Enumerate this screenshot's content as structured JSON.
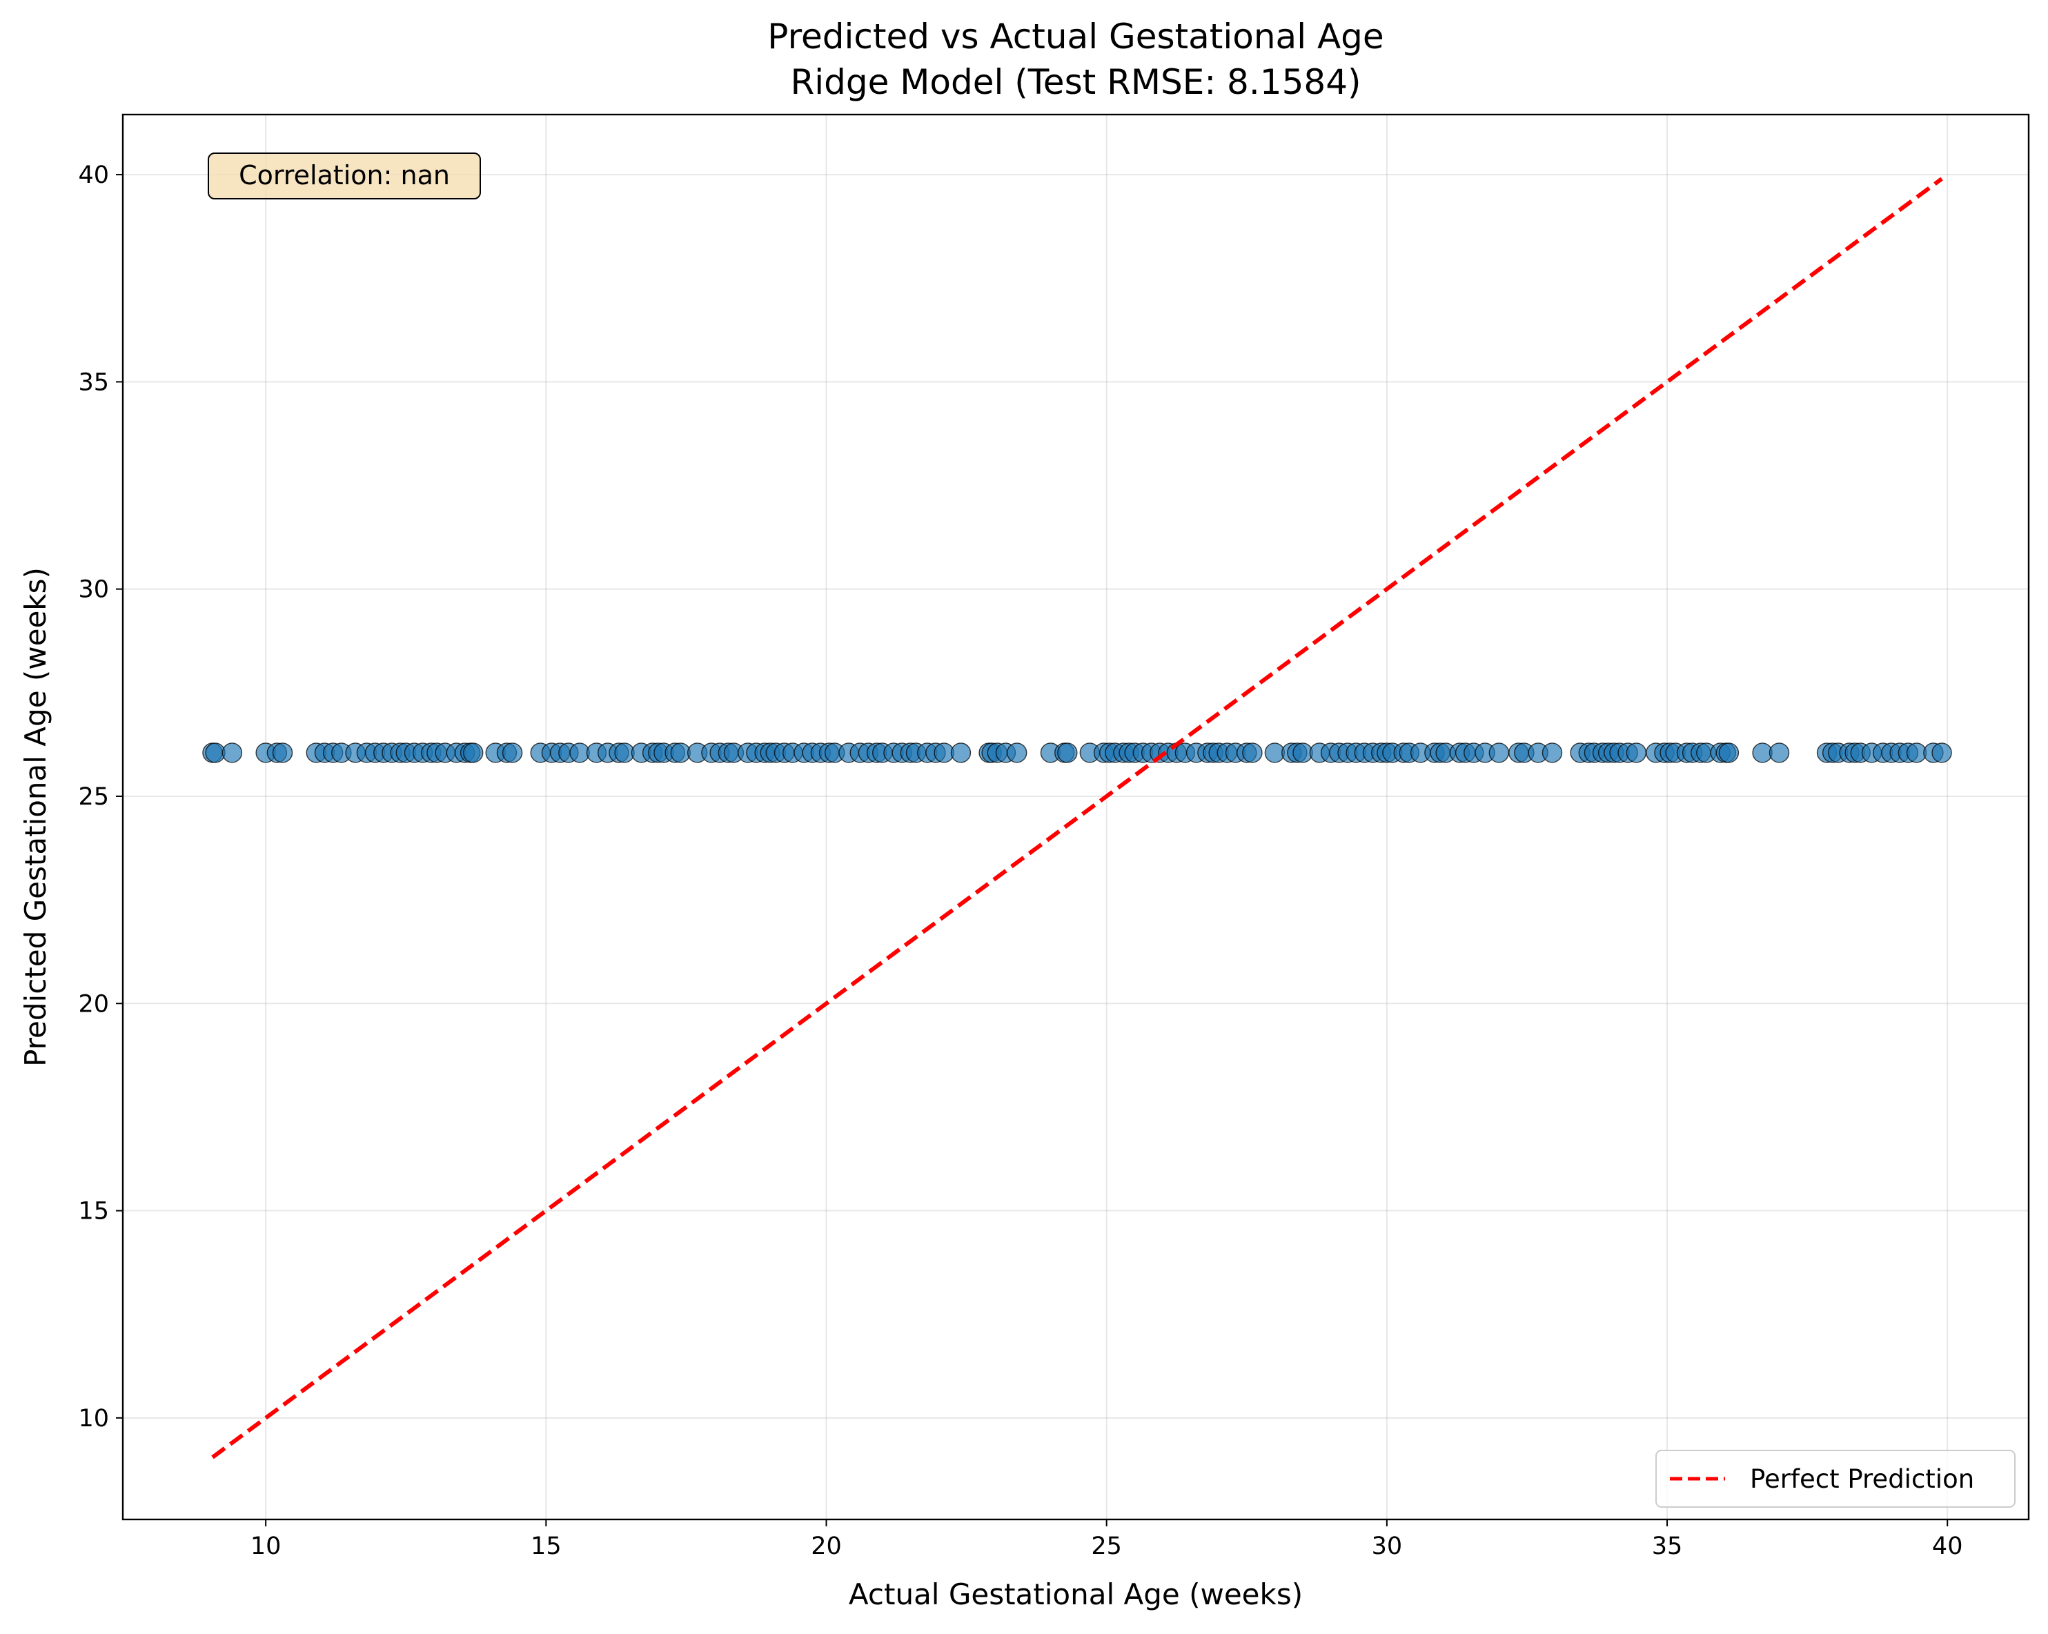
{
  "chart_data": {
    "type": "scatter",
    "title": [
      "Predicted vs Actual Gestational Age",
      "Ridge Model (Test RMSE: 8.1584)"
    ],
    "xlabel": "Actual Gestational Age (weeks)",
    "ylabel": "Predicted Gestational Age (weeks)",
    "xlim": [
      7.45,
      41.45
    ],
    "ylim": [
      7.55,
      41.45
    ],
    "xticks": [
      10,
      15,
      20,
      25,
      30,
      35,
      40
    ],
    "yticks": [
      10,
      15,
      20,
      25,
      30,
      35,
      40
    ],
    "grid": true,
    "annotation": "Correlation: nan",
    "legend": {
      "position": "lower-right",
      "entries": [
        "Perfect Prediction"
      ]
    },
    "series": [
      {
        "name": "",
        "kind": "scatter",
        "color": "#1f77b4",
        "alpha": 0.65,
        "y_constant": 26.05,
        "x": [
          9.05,
          9.1,
          9.4,
          10.0,
          10.2,
          10.3,
          10.9,
          11.05,
          11.2,
          11.35,
          11.6,
          11.8,
          11.95,
          12.1,
          12.25,
          12.4,
          12.5,
          12.65,
          12.8,
          12.95,
          13.05,
          13.2,
          13.4,
          13.55,
          13.65,
          13.7,
          14.1,
          14.3,
          14.4,
          14.9,
          15.1,
          15.25,
          15.4,
          15.6,
          15.9,
          16.1,
          16.3,
          16.4,
          16.7,
          16.9,
          17.0,
          17.1,
          17.3,
          17.4,
          17.7,
          17.95,
          18.1,
          18.25,
          18.35,
          18.6,
          18.75,
          18.9,
          19.0,
          19.1,
          19.25,
          19.4,
          19.6,
          19.75,
          19.9,
          20.05,
          20.15,
          20.4,
          20.6,
          20.75,
          20.9,
          21.0,
          21.2,
          21.35,
          21.5,
          21.6,
          21.8,
          21.95,
          22.1,
          22.4,
          22.9,
          22.95,
          23.05,
          23.2,
          23.4,
          24.0,
          24.25,
          24.3,
          24.7,
          24.95,
          25.05,
          25.15,
          25.3,
          25.4,
          25.5,
          25.65,
          25.8,
          25.95,
          26.1,
          26.25,
          26.4,
          26.6,
          26.8,
          26.9,
          27.0,
          27.15,
          27.3,
          27.5,
          27.6,
          28.0,
          28.3,
          28.4,
          28.5,
          28.8,
          29.0,
          29.15,
          29.3,
          29.45,
          29.6,
          29.75,
          29.9,
          30.0,
          30.1,
          30.3,
          30.4,
          30.6,
          30.85,
          30.95,
          31.05,
          31.3,
          31.4,
          31.55,
          31.75,
          32.0,
          32.35,
          32.45,
          32.7,
          32.95,
          33.45,
          33.6,
          33.7,
          33.85,
          33.95,
          34.05,
          34.15,
          34.3,
          34.45,
          34.8,
          34.95,
          35.05,
          35.15,
          35.35,
          35.45,
          35.6,
          35.7,
          35.95,
          36.05,
          36.1,
          36.7,
          37.0,
          37.85,
          37.95,
          38.05,
          38.25,
          38.35,
          38.45,
          38.65,
          38.85,
          39.0,
          39.15,
          39.3,
          39.45,
          39.75,
          39.9
        ]
      },
      {
        "name": "Perfect Prediction",
        "kind": "line",
        "color": "#ff0000",
        "dash": "dashed",
        "x": [
          9.05,
          39.9
        ],
        "y": [
          9.05,
          39.9
        ]
      }
    ]
  }
}
